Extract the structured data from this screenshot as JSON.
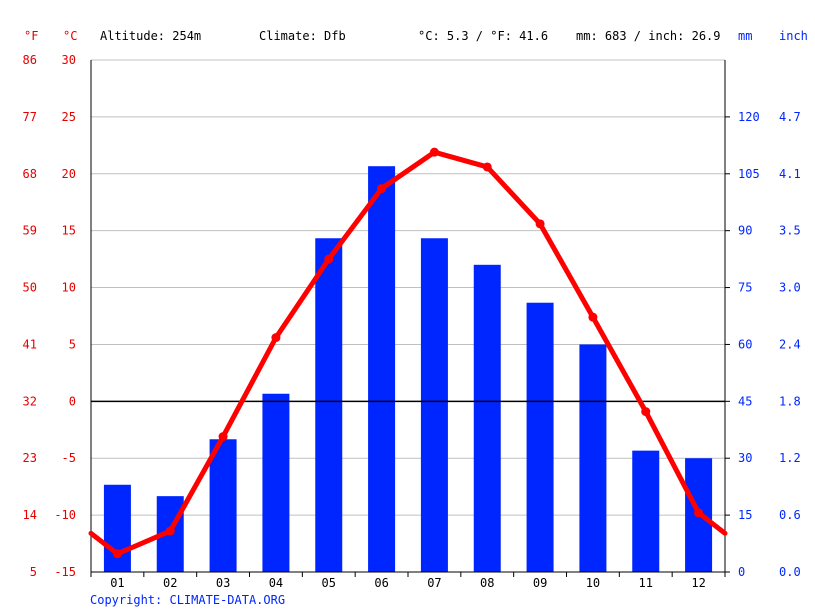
{
  "header": {
    "f_unit": "°F",
    "c_unit": "°C",
    "altitude": "Altitude: 254m",
    "climate": "Climate: Dfb",
    "temp_avg": "°C: 5.3 / °F: 41.6",
    "precip_total": "mm: 683 / inch: 26.9",
    "mm_unit": "mm",
    "inch_unit": "inch"
  },
  "copyright": "Copyright: CLIMATE-DATA.ORG",
  "colors": {
    "temperature": "#ff0000",
    "precipitation": "#0026ff",
    "grid": "#c0c0c0",
    "zero_line": "#000000"
  },
  "chart_data": {
    "type": "bar+line",
    "categories": [
      "01",
      "02",
      "03",
      "04",
      "05",
      "06",
      "07",
      "08",
      "09",
      "10",
      "11",
      "12"
    ],
    "series": [
      {
        "name": "mm",
        "type": "bar",
        "axis": "right",
        "values": [
          23,
          20,
          35,
          47,
          88,
          107,
          88,
          81,
          71,
          60,
          32,
          30
        ]
      },
      {
        "name": "°C",
        "type": "line",
        "axis": "left",
        "values": [
          -13.4,
          -11.4,
          -3.1,
          5.6,
          12.5,
          18.7,
          21.9,
          20.6,
          15.6,
          7.4,
          -0.9,
          -9.8
        ],
        "edge_values": [
          -11.6,
          -11.6
        ]
      }
    ],
    "y_left_c": {
      "range": [
        -15,
        30
      ],
      "ticks": [
        "-15",
        "-10",
        "-5",
        "0",
        "5",
        "10",
        "15",
        "20",
        "25",
        "30"
      ]
    },
    "y_left_f": {
      "ticks": [
        "5",
        "14",
        "23",
        "32",
        "41",
        "50",
        "59",
        "68",
        "77",
        "86"
      ]
    },
    "y_right_mm": {
      "range": [
        0,
        135
      ],
      "ticks": [
        "0",
        "15",
        "30",
        "45",
        "60",
        "75",
        "90",
        "105",
        "120"
      ]
    },
    "y_right_inch": {
      "ticks": [
        "0.0",
        "0.6",
        "1.2",
        "1.8",
        "2.4",
        "3.0",
        "3.5",
        "4.1",
        "4.7"
      ]
    },
    "grid": true
  }
}
